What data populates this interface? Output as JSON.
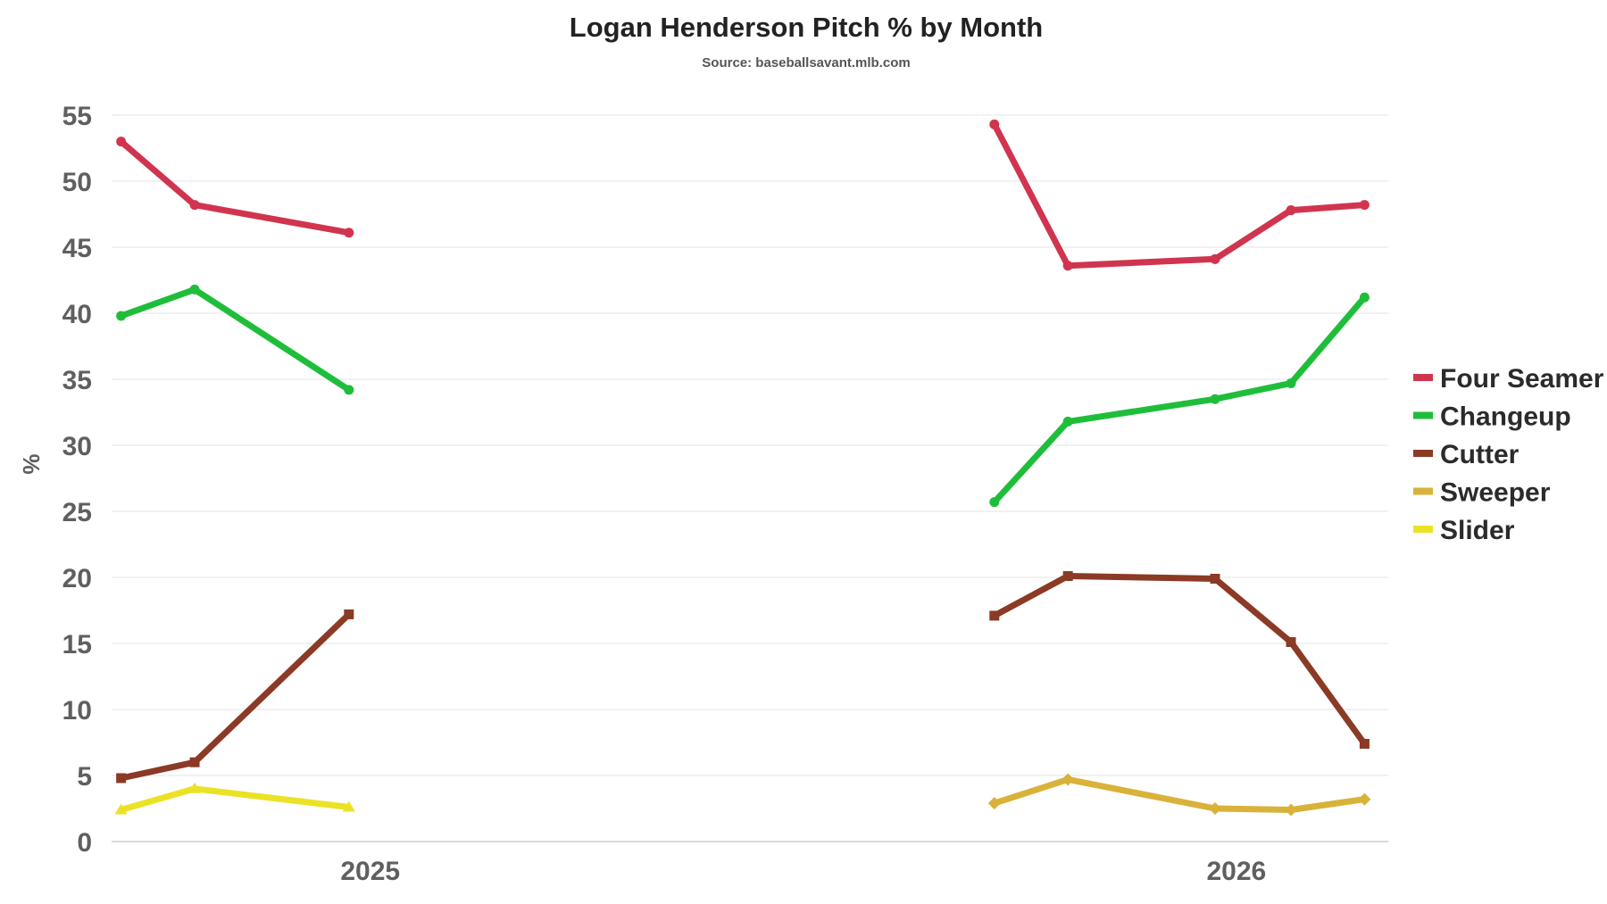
{
  "chart_data": {
    "type": "line",
    "title": "Logan Henderson Pitch % by Month",
    "subtitle": "Source: baseballsavant.mlb.com",
    "ylabel": "%",
    "ylim": [
      0,
      55
    ],
    "yticks": [
      0,
      5,
      10,
      15,
      20,
      25,
      30,
      35,
      40,
      45,
      50,
      55
    ],
    "xlim": [
      "2025-03-14",
      "2026-09-03"
    ],
    "xticks": [
      {
        "date": "2025-07-01",
        "label": "2025"
      },
      {
        "date": "2026-07-01",
        "label": "2026"
      }
    ],
    "legend_position": "right",
    "grid": true,
    "series": [
      {
        "name": "Four Seamer",
        "color": "#d1344f",
        "marker": "circle",
        "points": [
          [
            "2025-03-18",
            53.0
          ],
          [
            "2025-04-18",
            48.2
          ],
          [
            "2025-06-22",
            46.1
          ],
          [
            "2026-03-21",
            54.3
          ],
          [
            "2026-04-21",
            43.6
          ],
          [
            "2026-06-22",
            44.1
          ],
          [
            "2026-07-24",
            47.8
          ],
          [
            "2026-08-24",
            48.2
          ]
        ]
      },
      {
        "name": "Changeup",
        "color": "#1fbe3a",
        "marker": "circle",
        "points": [
          [
            "2025-03-18",
            39.8
          ],
          [
            "2025-04-18",
            41.8
          ],
          [
            "2025-06-22",
            34.2
          ],
          [
            "2026-03-21",
            25.7
          ],
          [
            "2026-04-21",
            31.8
          ],
          [
            "2026-06-22",
            33.5
          ],
          [
            "2026-07-24",
            34.7
          ],
          [
            "2026-08-24",
            41.2
          ]
        ]
      },
      {
        "name": "Cutter",
        "color": "#8b3a25",
        "marker": "square",
        "points": [
          [
            "2025-03-18",
            4.8
          ],
          [
            "2025-04-18",
            6.0
          ],
          [
            "2025-06-22",
            17.2
          ],
          [
            "2026-03-21",
            17.1
          ],
          [
            "2026-04-21",
            20.1
          ],
          [
            "2026-06-22",
            19.9
          ],
          [
            "2026-07-24",
            15.1
          ],
          [
            "2026-08-24",
            7.4
          ]
        ]
      },
      {
        "name": "Sweeper",
        "color": "#d9b23a",
        "marker": "diamond",
        "points": [
          [
            "2026-03-21",
            2.9
          ],
          [
            "2026-04-21",
            4.7
          ],
          [
            "2026-06-22",
            2.5
          ],
          [
            "2026-07-24",
            2.4
          ],
          [
            "2026-08-24",
            3.2
          ]
        ]
      },
      {
        "name": "Slider",
        "color": "#ebe226",
        "marker": "triangle",
        "points": [
          [
            "2025-03-18",
            2.4
          ],
          [
            "2025-04-18",
            4.0
          ],
          [
            "2025-06-22",
            2.6
          ]
        ]
      }
    ]
  }
}
